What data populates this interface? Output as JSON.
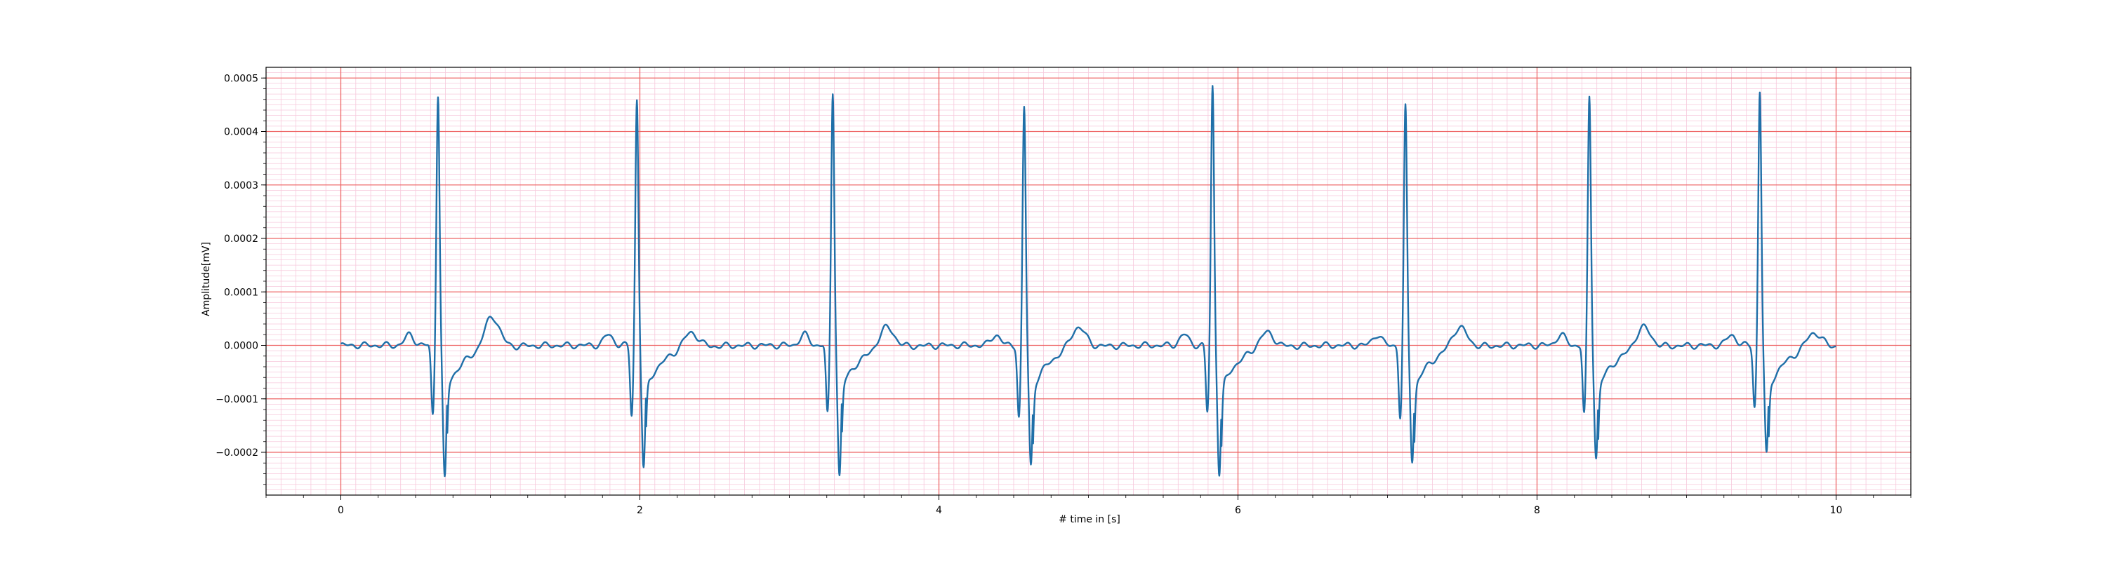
{
  "chart_data": {
    "type": "line",
    "title": "",
    "xlabel": "# time in [s]",
    "ylabel": "Amplitude[mV]",
    "xlim": [
      -0.5,
      10.5
    ],
    "ylim": [
      -0.00028,
      0.00052
    ],
    "x_ticks": [
      0,
      2,
      4,
      6,
      8,
      10
    ],
    "x_tick_labels": [
      "0",
      "2",
      "4",
      "6",
      "8",
      "10"
    ],
    "y_ticks": [
      -0.0002,
      -0.0001,
      0.0,
      0.0001,
      0.0002,
      0.0003,
      0.0004,
      0.0005
    ],
    "y_tick_labels": [
      "−0.0002",
      "−0.0001",
      "0.0000",
      "0.0001",
      "0.0002",
      "0.0003",
      "0.0004",
      "0.0005"
    ],
    "grid": true,
    "grid_style": "ECG paper: major red lines at labeled ticks, minor pink lines",
    "grid_major_color": "#ee6666",
    "grid_minor_color": "#f7c9dc",
    "line_color": "#1f6fa8",
    "series": [
      {
        "name": "",
        "description": "ECG trace, 10 s, 8 beats",
        "sampling_hz": 200,
        "t_start": 0,
        "t_end": 10,
        "beats": [
          {
            "r_time": 0.65,
            "r_amp": 0.00047,
            "q_amp": -0.0001,
            "s_amp": -0.00025,
            "t_amp": 6e-05
          },
          {
            "r_time": 1.98,
            "r_amp": 0.00046,
            "q_amp": -0.0001,
            "s_amp": -0.00023,
            "t_amp": 3e-05
          },
          {
            "r_time": 3.29,
            "r_amp": 0.000475,
            "q_amp": -0.0001,
            "s_amp": -0.000245,
            "t_amp": 4e-05
          },
          {
            "r_time": 4.57,
            "r_amp": 0.000445,
            "q_amp": -0.000105,
            "s_amp": -0.000225,
            "t_amp": 4e-05
          },
          {
            "r_time": 5.83,
            "r_amp": 0.000485,
            "q_amp": -9.5e-05,
            "s_amp": -0.00024,
            "t_amp": 3e-05
          },
          {
            "r_time": 7.12,
            "r_amp": 0.000445,
            "q_amp": -0.000105,
            "s_amp": -0.000215,
            "t_amp": 4e-05
          },
          {
            "r_time": 8.35,
            "r_amp": 0.000465,
            "q_amp": -0.0001,
            "s_amp": -0.00021,
            "t_amp": 4e-05
          },
          {
            "r_time": 9.49,
            "r_amp": 0.000475,
            "q_amp": -8.5e-05,
            "s_amp": -0.000205,
            "t_amp": 3e-05
          }
        ]
      }
    ]
  }
}
